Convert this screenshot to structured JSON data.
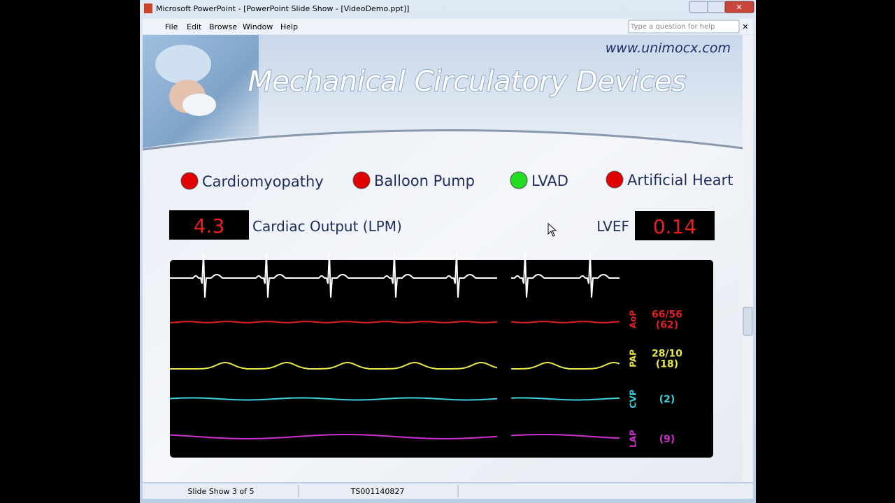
{
  "window": {
    "title": "Microsoft PowerPoint - [PowerPoint Slide Show - [VideoDemo.ppt]]",
    "menu": [
      "File",
      "Edit",
      "Browse",
      "Window",
      "Help"
    ],
    "help_box": "Type a question for help"
  },
  "slide": {
    "url": "www.unimocx.com",
    "title": "Mechanical Circulatory Devices",
    "indicators": [
      {
        "label": "Cardiomyopathy",
        "color": "#e00000"
      },
      {
        "label": "Balloon Pump",
        "color": "#e00000"
      },
      {
        "label": "LVAD",
        "color": "#22dd22"
      },
      {
        "label": "Artificial Heart",
        "color": "#e00000"
      }
    ],
    "cardiac_output": {
      "value": "4.3",
      "label": "Cardiac Output (LPM)"
    },
    "lvef": {
      "label": "LVEF",
      "value": "0.14"
    },
    "monitor": {
      "channels": [
        {
          "name": "AoP",
          "color": "#e02020",
          "lines": [
            "66/56",
            "(62)"
          ]
        },
        {
          "name": "PAP",
          "color": "#e8e84a",
          "lines": [
            "28/10",
            "(18)"
          ]
        },
        {
          "name": "CVP",
          "color": "#3cd0e0",
          "lines": [
            "(2)"
          ]
        },
        {
          "name": "LAP",
          "color": "#d030d0",
          "lines": [
            "(9)"
          ]
        }
      ]
    }
  },
  "status_bar": {
    "slide": "Slide Show 3 of 5",
    "id": "TS001140827"
  }
}
